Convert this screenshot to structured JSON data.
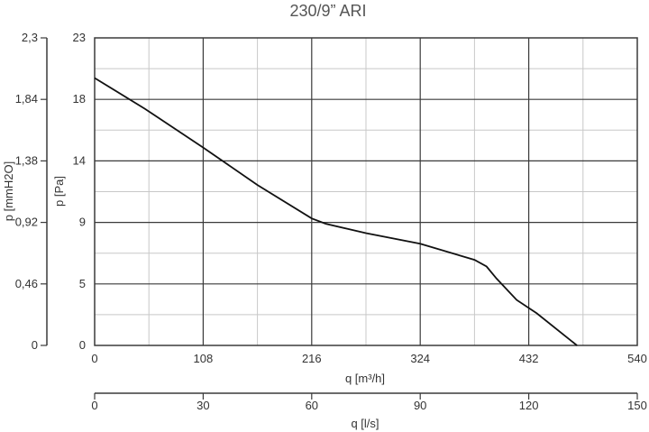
{
  "chart_data": {
    "type": "line",
    "title": "230/9” ARI",
    "xlabel": "q [m³/h]",
    "ylabel": "p [Pa]",
    "ylabel_secondary": "p [mmH2O]",
    "xlabel_secondary": "q [l/s]",
    "xlim": [
      0,
      540
    ],
    "ylim": [
      0,
      23
    ],
    "x_ticks": [
      "0",
      "108",
      "216",
      "324",
      "432",
      "540"
    ],
    "y_ticks": [
      "0",
      "5",
      "9",
      "14",
      "18",
      "23"
    ],
    "y_ticks_secondary": [
      "0",
      "0,46",
      "0,92",
      "1,38",
      "1,84",
      "2,3"
    ],
    "x_ticks_secondary": [
      "0",
      "30",
      "60",
      "90",
      "120",
      "150"
    ],
    "grid": true,
    "series": [
      {
        "x": [
          0,
          50,
          108,
          162,
          216,
          230,
          270,
          324,
          378,
          390,
          400,
          420,
          440,
          480
        ],
        "y": [
          20.0,
          17.7,
          14.8,
          12.0,
          9.5,
          9.1,
          8.4,
          7.6,
          6.4,
          5.9,
          5.0,
          3.4,
          2.4,
          0
        ]
      }
    ],
    "colors": {
      "line": "#111111",
      "grid_major": "#3a3a3a",
      "grid_minor": "#c8c8c8"
    }
  }
}
